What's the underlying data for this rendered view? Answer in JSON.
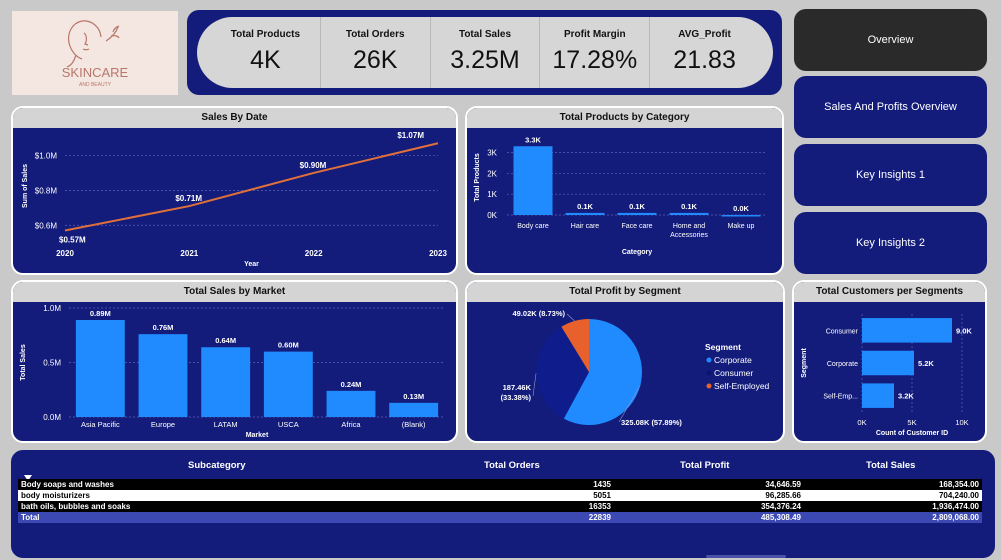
{
  "logo": {
    "brand": "SKINCARE",
    "tagline": "AND BEAUTY"
  },
  "kpis": [
    {
      "label": "Total Products",
      "value": "4K"
    },
    {
      "label": "Total Orders",
      "value": "26K"
    },
    {
      "label": "Total Sales",
      "value": "3.25M"
    },
    {
      "label": "Profit Margin",
      "value": "17.28%"
    },
    {
      "label": "AVG_Profit",
      "value": "21.83"
    }
  ],
  "nav": {
    "overview": "Overview",
    "sales_profits": "Sales And Profits Overview",
    "insights1": "Key Insights 1",
    "insights2": "Key Insights 2"
  },
  "colors": {
    "bar": "#1f8bff",
    "line": "#e0703a",
    "panel": "#131c7a",
    "self_employed": "#e8602c",
    "consumer": "#0f1d8c"
  },
  "chart_data": [
    {
      "type": "line",
      "title": "Sales By Date",
      "xlabel": "Year",
      "ylabel": "Sum of Sales",
      "x": [
        "2020",
        "2021",
        "2022",
        "2023"
      ],
      "values": [
        0.57,
        0.71,
        0.9,
        1.07
      ],
      "data_labels": [
        "$0.57M",
        "$0.71M",
        "$0.90M",
        "$1.07M"
      ],
      "y_ticks": [
        "$0.6M",
        "$0.8M",
        "$1.0M"
      ],
      "y_tick_values": [
        0.6,
        0.8,
        1.0
      ],
      "ylim": [
        0.55,
        1.1
      ]
    },
    {
      "type": "bar",
      "title": "Total Products by Category",
      "xlabel": "Category",
      "ylabel": "Total Products",
      "categories": [
        "Body care",
        "Hair care",
        "Face care",
        "Home and Accessories",
        "Make up"
      ],
      "values": [
        3300,
        100,
        100,
        100,
        0
      ],
      "data_labels": [
        "3.3K",
        "0.1K",
        "0.1K",
        "0.1K",
        "0.0K"
      ],
      "y_ticks": [
        "0K",
        "1K",
        "2K",
        "3K"
      ],
      "y_tick_values": [
        0,
        1000,
        2000,
        3000
      ],
      "ylim": [
        0,
        3600
      ]
    },
    {
      "type": "bar",
      "title": "Total Sales by Market",
      "xlabel": "Market",
      "ylabel": "Total Sales",
      "categories": [
        "Asia Pacific",
        "Europe",
        "LATAM",
        "USCA",
        "Africa",
        "(Blank)"
      ],
      "values": [
        0.89,
        0.76,
        0.64,
        0.6,
        0.24,
        0.13
      ],
      "data_labels": [
        "0.89M",
        "0.76M",
        "0.64M",
        "0.60M",
        "0.24M",
        "0.13M"
      ],
      "y_ticks": [
        "0.0M",
        "0.5M",
        "1.0M"
      ],
      "y_tick_values": [
        0,
        0.5,
        1.0
      ],
      "ylim": [
        0,
        1.0
      ]
    },
    {
      "type": "pie",
      "title": "Total Profit by Segment",
      "legend_title": "Segment",
      "series": [
        {
          "name": "Corporate",
          "value": 325.08,
          "label": "325.08K (57.89%)",
          "color": "#1f8bff"
        },
        {
          "name": "Consumer",
          "value": 187.46,
          "label_line1": "187.46K",
          "label_line2": "(33.38%)",
          "color": "#0f1d8c"
        },
        {
          "name": "Self-Employed",
          "value": 49.02,
          "label": "49.02K (8.73%)",
          "color": "#e8602c"
        }
      ]
    },
    {
      "type": "bar",
      "orientation": "horizontal",
      "title": "Total Customers per Segments",
      "xlabel": "Count of Customer ID",
      "ylabel": "Segment",
      "categories": [
        "Consumer",
        "Corporate",
        "Self-Emp..."
      ],
      "values": [
        9000,
        5200,
        3200
      ],
      "data_labels": [
        "9.0K",
        "5.2K",
        "3.2K"
      ],
      "x_ticks": [
        "0K",
        "5K",
        "10K"
      ],
      "x_tick_values": [
        0,
        5000,
        10000
      ],
      "xlim": [
        0,
        10000
      ]
    },
    {
      "type": "table",
      "columns": [
        "Subcategory",
        "Total Orders",
        "Total Profit",
        "Total Sales"
      ],
      "rows": [
        [
          "Body soaps and washes",
          "1435",
          "34,646.59",
          "168,354.00"
        ],
        [
          "body moisturizers",
          "5051",
          "96,285.66",
          "704,240.00"
        ],
        [
          "bath oils, bubbles and soaks",
          "16353",
          "354,376.24",
          "1,936,474.00"
        ]
      ],
      "total": [
        "Total",
        "22839",
        "485,308.49",
        "2,809,068.00"
      ]
    }
  ]
}
